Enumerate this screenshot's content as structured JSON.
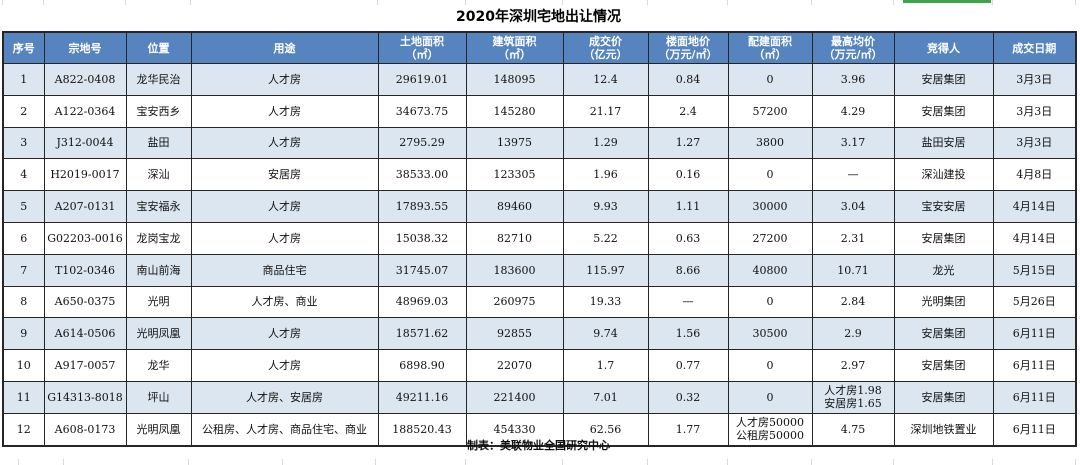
{
  "title": "2020年深圳宅地出让情况",
  "footer": {
    "note": "制表：美联物业全国研究中心"
  },
  "colors": {
    "header_bg": "#5584BE",
    "band_bg": "#DCE6F1",
    "border": "#262626",
    "selection_green": "#3FA648",
    "grid_line": "#D8D8D8"
  },
  "table": {
    "columns": [
      {
        "label": "序号",
        "unit": ""
      },
      {
        "label": "宗地号",
        "unit": ""
      },
      {
        "label": "位置",
        "unit": ""
      },
      {
        "label": "用途",
        "unit": ""
      },
      {
        "label": "土地面积",
        "unit": "（㎡）"
      },
      {
        "label": "建筑面积",
        "unit": "（㎡）"
      },
      {
        "label": "成交价",
        "unit": "（亿元）"
      },
      {
        "label": "楼面地价",
        "unit": "（万元/㎡）"
      },
      {
        "label": "配建面积",
        "unit": "（㎡）"
      },
      {
        "label": "最高均价",
        "unit": "（万元/㎡）"
      },
      {
        "label": "竞得人",
        "unit": ""
      },
      {
        "label": "成交日期",
        "unit": ""
      }
    ],
    "rows": [
      [
        "1",
        "A822-0408",
        "龙华民治",
        "人才房",
        "29619.01",
        "148095",
        "12.4",
        "0.84",
        "0",
        "3.96",
        "安居集团",
        "3月3日"
      ],
      [
        "2",
        "A122-0364",
        "宝安西乡",
        "人才房",
        "34673.75",
        "145280",
        "21.17",
        "2.4",
        "57200",
        "4.29",
        "安居集团",
        "3月3日"
      ],
      [
        "3",
        "J312-0044",
        "盐田",
        "人才房",
        "2795.29",
        "13975",
        "1.29",
        "1.27",
        "3800",
        "3.17",
        "盐田安居",
        "3月3日"
      ],
      [
        "4",
        "H2019-0017",
        "深汕",
        "安居房",
        "38533.00",
        "123305",
        "1.96",
        "0.16",
        "0",
        "—",
        "深汕建投",
        "4月8日"
      ],
      [
        "5",
        "A207-0131",
        "宝安福永",
        "人才房",
        "17893.55",
        "89460",
        "9.93",
        "1.11",
        "30000",
        "3.04",
        "宝安安居",
        "4月14日"
      ],
      [
        "6",
        "G02203-0016",
        "龙岗宝龙",
        "人才房",
        "15038.32",
        "82710",
        "5.22",
        "0.63",
        "27200",
        "2.31",
        "安居集团",
        "4月14日"
      ],
      [
        "7",
        "T102-0346",
        "南山前海",
        "商品住宅",
        "31745.07",
        "183600",
        "115.97",
        "8.66",
        "40800",
        "10.71",
        "龙光",
        "5月15日"
      ],
      [
        "8",
        "A650-0375",
        "光明",
        "人才房、商业",
        "48969.03",
        "260975",
        "19.33",
        "—",
        "0",
        "2.84",
        "光明集团",
        "5月26日"
      ],
      [
        "9",
        "A614-0506",
        "光明凤凰",
        "人才房",
        "18571.62",
        "92855",
        "9.74",
        "1.56",
        "30500",
        "2.9",
        "安居集团",
        "6月11日"
      ],
      [
        "10",
        "A917-0057",
        "龙华",
        "人才房",
        "6898.90",
        "22070",
        "1.7",
        "0.77",
        "0",
        "2.97",
        "安居集团",
        "6月11日"
      ],
      [
        "11",
        "G14313-8018",
        "坪山",
        "人才房、安居房",
        "49211.16",
        "221400",
        "7.01",
        "0.32",
        "0",
        "人才房1.98\n安居房1.65",
        "安居集团",
        "6月11日"
      ],
      [
        "12",
        "A608-0173",
        "光明凤凰",
        "公租房、人才房、商品住宅、商业",
        "188520.43",
        "454330",
        "62.56",
        "1.77",
        "人才房50000\n公租房50000",
        "4.75",
        "深圳地铁置业",
        "6月11日"
      ]
    ]
  }
}
